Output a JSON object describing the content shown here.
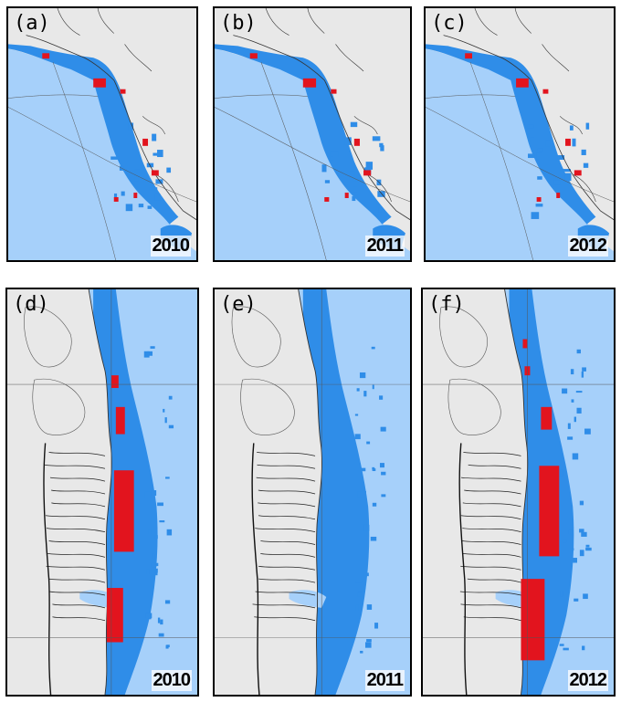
{
  "colors": {
    "land": "#e8e8e8",
    "open_water": "#a6d0fa",
    "sea_ice": "#2f8de8",
    "highlight": "#e2141e",
    "coast": "#333333"
  },
  "panels": [
    {
      "label": "(a)",
      "year": "2010"
    },
    {
      "label": "(b)",
      "year": "2011"
    },
    {
      "label": "(c)",
      "year": "2012"
    },
    {
      "label": "(d)",
      "year": "2010"
    },
    {
      "label": "(e)",
      "year": "2011"
    },
    {
      "label": "(f)",
      "year": "2012"
    }
  ]
}
